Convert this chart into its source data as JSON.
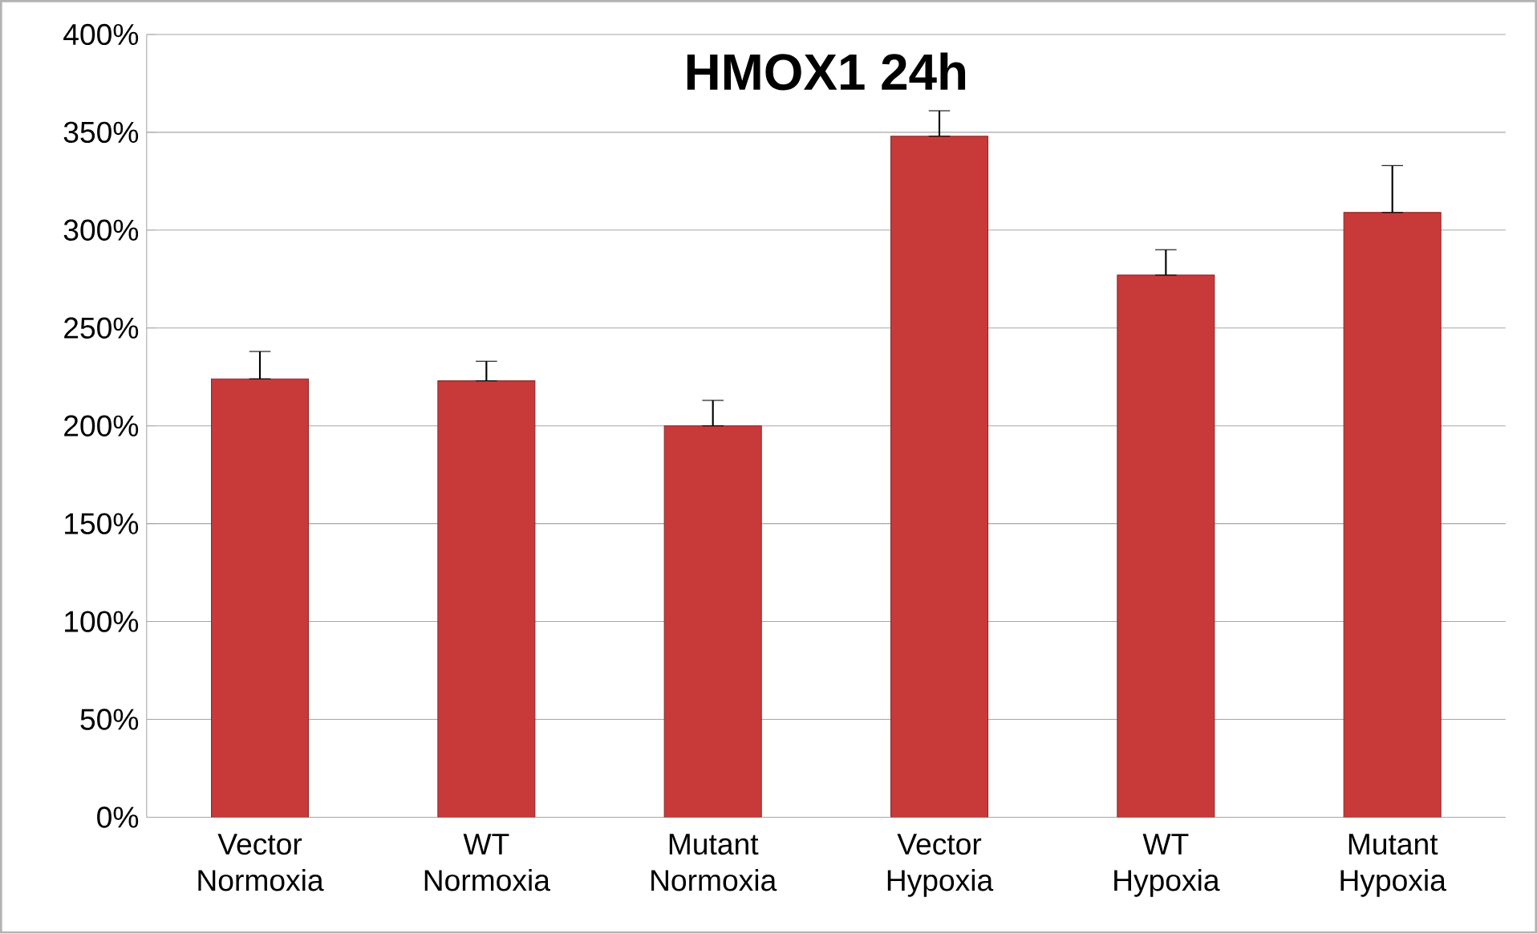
{
  "chart_data": {
    "type": "bar",
    "title": "HMOX1 24h",
    "categories": [
      "Vector Normoxia",
      "WT Normoxia",
      "Mutant Normoxia",
      "Vector Hypoxia",
      "WT Hypoxia",
      "Mutant Hypoxia"
    ],
    "values": [
      224,
      223,
      200,
      348,
      277,
      309
    ],
    "errors": [
      [
        224,
        238
      ],
      [
        223,
        233
      ],
      [
        200,
        213
      ],
      [
        348,
        361
      ],
      [
        277,
        290
      ],
      [
        309,
        333
      ]
    ],
    "color": "#c83a3a",
    "ylim": [
      0,
      400
    ],
    "yticks": [
      {
        "value": 0,
        "label": "0%"
      },
      {
        "value": 50,
        "label": "50%"
      },
      {
        "value": 100,
        "label": "100%"
      },
      {
        "value": 150,
        "label": "150%"
      },
      {
        "value": 200,
        "label": "200%"
      },
      {
        "value": 250,
        "label": "250%"
      },
      {
        "value": 300,
        "label": "300%"
      },
      {
        "value": 350,
        "label": "350%"
      },
      {
        "value": 400,
        "label": "400%"
      }
    ],
    "grid": "y"
  }
}
